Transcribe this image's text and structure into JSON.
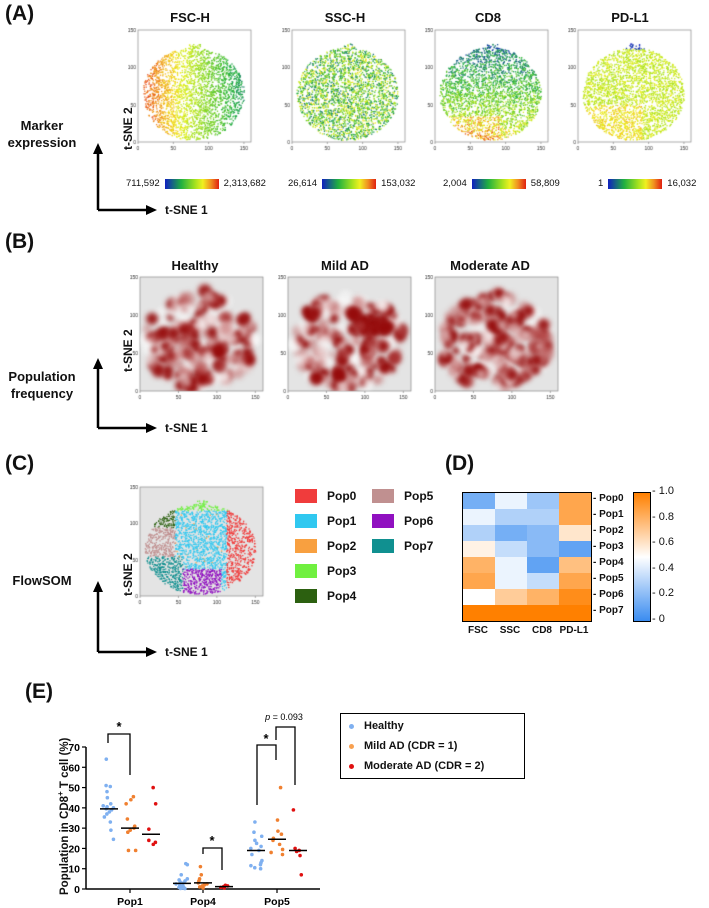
{
  "panel_labels": {
    "a": "(A)",
    "b": "(B)",
    "c": "(C)",
    "d": "(D)",
    "e": "(E)"
  },
  "axes": {
    "tsne1": "t-SNE 1",
    "tsne2": "t-SNE 2",
    "ticks_x": [
      0,
      50,
      100,
      150
    ],
    "ticks_y": [
      0,
      50,
      100,
      150
    ]
  },
  "panel_a": {
    "row_label": "Marker expression",
    "markers": [
      {
        "title": "FSC-H",
        "min": "711,592",
        "max": "2,313,682"
      },
      {
        "title": "SSC-H",
        "min": "26,614",
        "max": "153,032"
      },
      {
        "title": "CD8",
        "min": "2,004",
        "max": "58,809"
      },
      {
        "title": "PD-L1",
        "min": "1",
        "max": "16,032"
      }
    ]
  },
  "panel_b": {
    "row_label": "Population frequency",
    "groups": [
      "Healthy",
      "Mild AD",
      "Moderate AD"
    ]
  },
  "panel_c": {
    "row_label": "FlowSOM",
    "legend": [
      {
        "label": "Pop0",
        "color": "#f03c3c"
      },
      {
        "label": "Pop1",
        "color": "#30c8f0"
      },
      {
        "label": "Pop2",
        "color": "#f8a040"
      },
      {
        "label": "Pop3",
        "color": "#70f040"
      },
      {
        "label": "Pop4",
        "color": "#2c6010"
      },
      {
        "label": "Pop5",
        "color": "#c09090"
      },
      {
        "label": "Pop6",
        "color": "#9010c0"
      },
      {
        "label": "Pop7",
        "color": "#109090"
      }
    ]
  },
  "chart_data": [
    {
      "type": "heatmap",
      "title": "",
      "columns": [
        "FSC",
        "SSC",
        "CD8",
        "PD-L1"
      ],
      "rows": [
        "Pop0",
        "Pop1",
        "Pop2",
        "Pop3",
        "Pop4",
        "Pop5",
        "Pop6",
        "Pop7"
      ],
      "values": [
        [
          0.15,
          0.45,
          0.25,
          0.85
        ],
        [
          0.45,
          0.3,
          0.3,
          0.85
        ],
        [
          0.3,
          0.15,
          0.2,
          0.6
        ],
        [
          0.55,
          0.35,
          0.2,
          0.1
        ],
        [
          0.8,
          0.45,
          0.1,
          0.75
        ],
        [
          0.85,
          0.45,
          0.35,
          0.85
        ],
        [
          0.5,
          0.7,
          0.8,
          0.95
        ],
        [
          1.0,
          1.0,
          1.0,
          1.0
        ]
      ],
      "colorbar": {
        "range": [
          0,
          1
        ],
        "ticks": [
          "1.0",
          "0.8",
          "0.6",
          "0.4",
          "0.2",
          "0"
        ],
        "low_color": "#3a8cf0",
        "mid_color": "#ffffff",
        "high_color": "#ff8000"
      }
    },
    {
      "type": "scatter",
      "ylabel": "Population in CD8+ T cell (%)",
      "ylabel_main": "Population in CD8",
      "ylabel_sup": "+",
      "ylabel_tail": " T cell (%)",
      "ylim": [
        0,
        70
      ],
      "yticks": [
        "0",
        "10",
        "20",
        "30",
        "40",
        "50",
        "60",
        "70"
      ],
      "categories": [
        "Pop1",
        "Pop4",
        "Pop5"
      ],
      "series": [
        {
          "name": "Healthy",
          "color": "#7fb0f0",
          "values": [
            [
              64,
              51,
              50.5,
              48,
              45,
              42,
              41,
              40.5,
              40,
              39.5,
              39,
              38,
              37,
              35.5,
              33,
              29,
              24.5
            ],
            [
              12.5,
              12,
              7,
              5,
              4.5,
              4,
              3.5,
              3,
              2.5,
              2,
              1.5,
              1,
              0.8,
              0.5,
              0.3,
              0.2
            ],
            [
              33,
              28,
              26,
              24,
              22.5,
              21,
              20,
              19,
              17,
              14,
              13,
              12,
              11.5,
              10.5,
              10
            ]
          ],
          "medians": [
            39.5,
            2.8,
            19
          ]
        },
        {
          "name": "Mild AD (CDR = 1)",
          "color": "#f08030",
          "values": [
            [
              45.5,
              44,
              42,
              34.5,
              31,
              30,
              29,
              28,
              19,
              19
            ],
            [
              11,
              7,
              5,
              4,
              3,
              2.5,
              2,
              1.5,
              1,
              0.5
            ],
            [
              50,
              34,
              28.5,
              27,
              25,
              24,
              22,
              19.5,
              18,
              17
            ]
          ],
          "medians": [
            30,
            3,
            24.5
          ]
        },
        {
          "name": "Moderate AD (CDR = 2)",
          "color": "#e01010",
          "values": [
            [
              50,
              42,
              29.5,
              24,
              23,
              22
            ],
            [
              1.8,
              1.5,
              1.2,
              1,
              0.8,
              0.5
            ],
            [
              39,
              20,
              19,
              18.5,
              16.5,
              7
            ]
          ],
          "medians": [
            27,
            1.2,
            19
          ]
        }
      ],
      "annotations": [
        {
          "category": "Pop1",
          "between": [
            "Healthy",
            "Mild AD (CDR = 1)"
          ],
          "text": "*"
        },
        {
          "category": "Pop4",
          "between": [
            "Mild AD (CDR = 1)",
            "Moderate AD (CDR = 2)"
          ],
          "text": "*"
        },
        {
          "category": "Pop5",
          "between": [
            "Healthy",
            "Mild AD (CDR = 1)"
          ],
          "text": "*"
        },
        {
          "category": "Pop5",
          "between": [
            "Mild AD (CDR = 1)",
            "Moderate AD (CDR = 2)"
          ],
          "text": "p = 0.093",
          "p_letter": "p",
          "p_rest": " = 0.093"
        }
      ],
      "legend_placement": "right"
    }
  ]
}
